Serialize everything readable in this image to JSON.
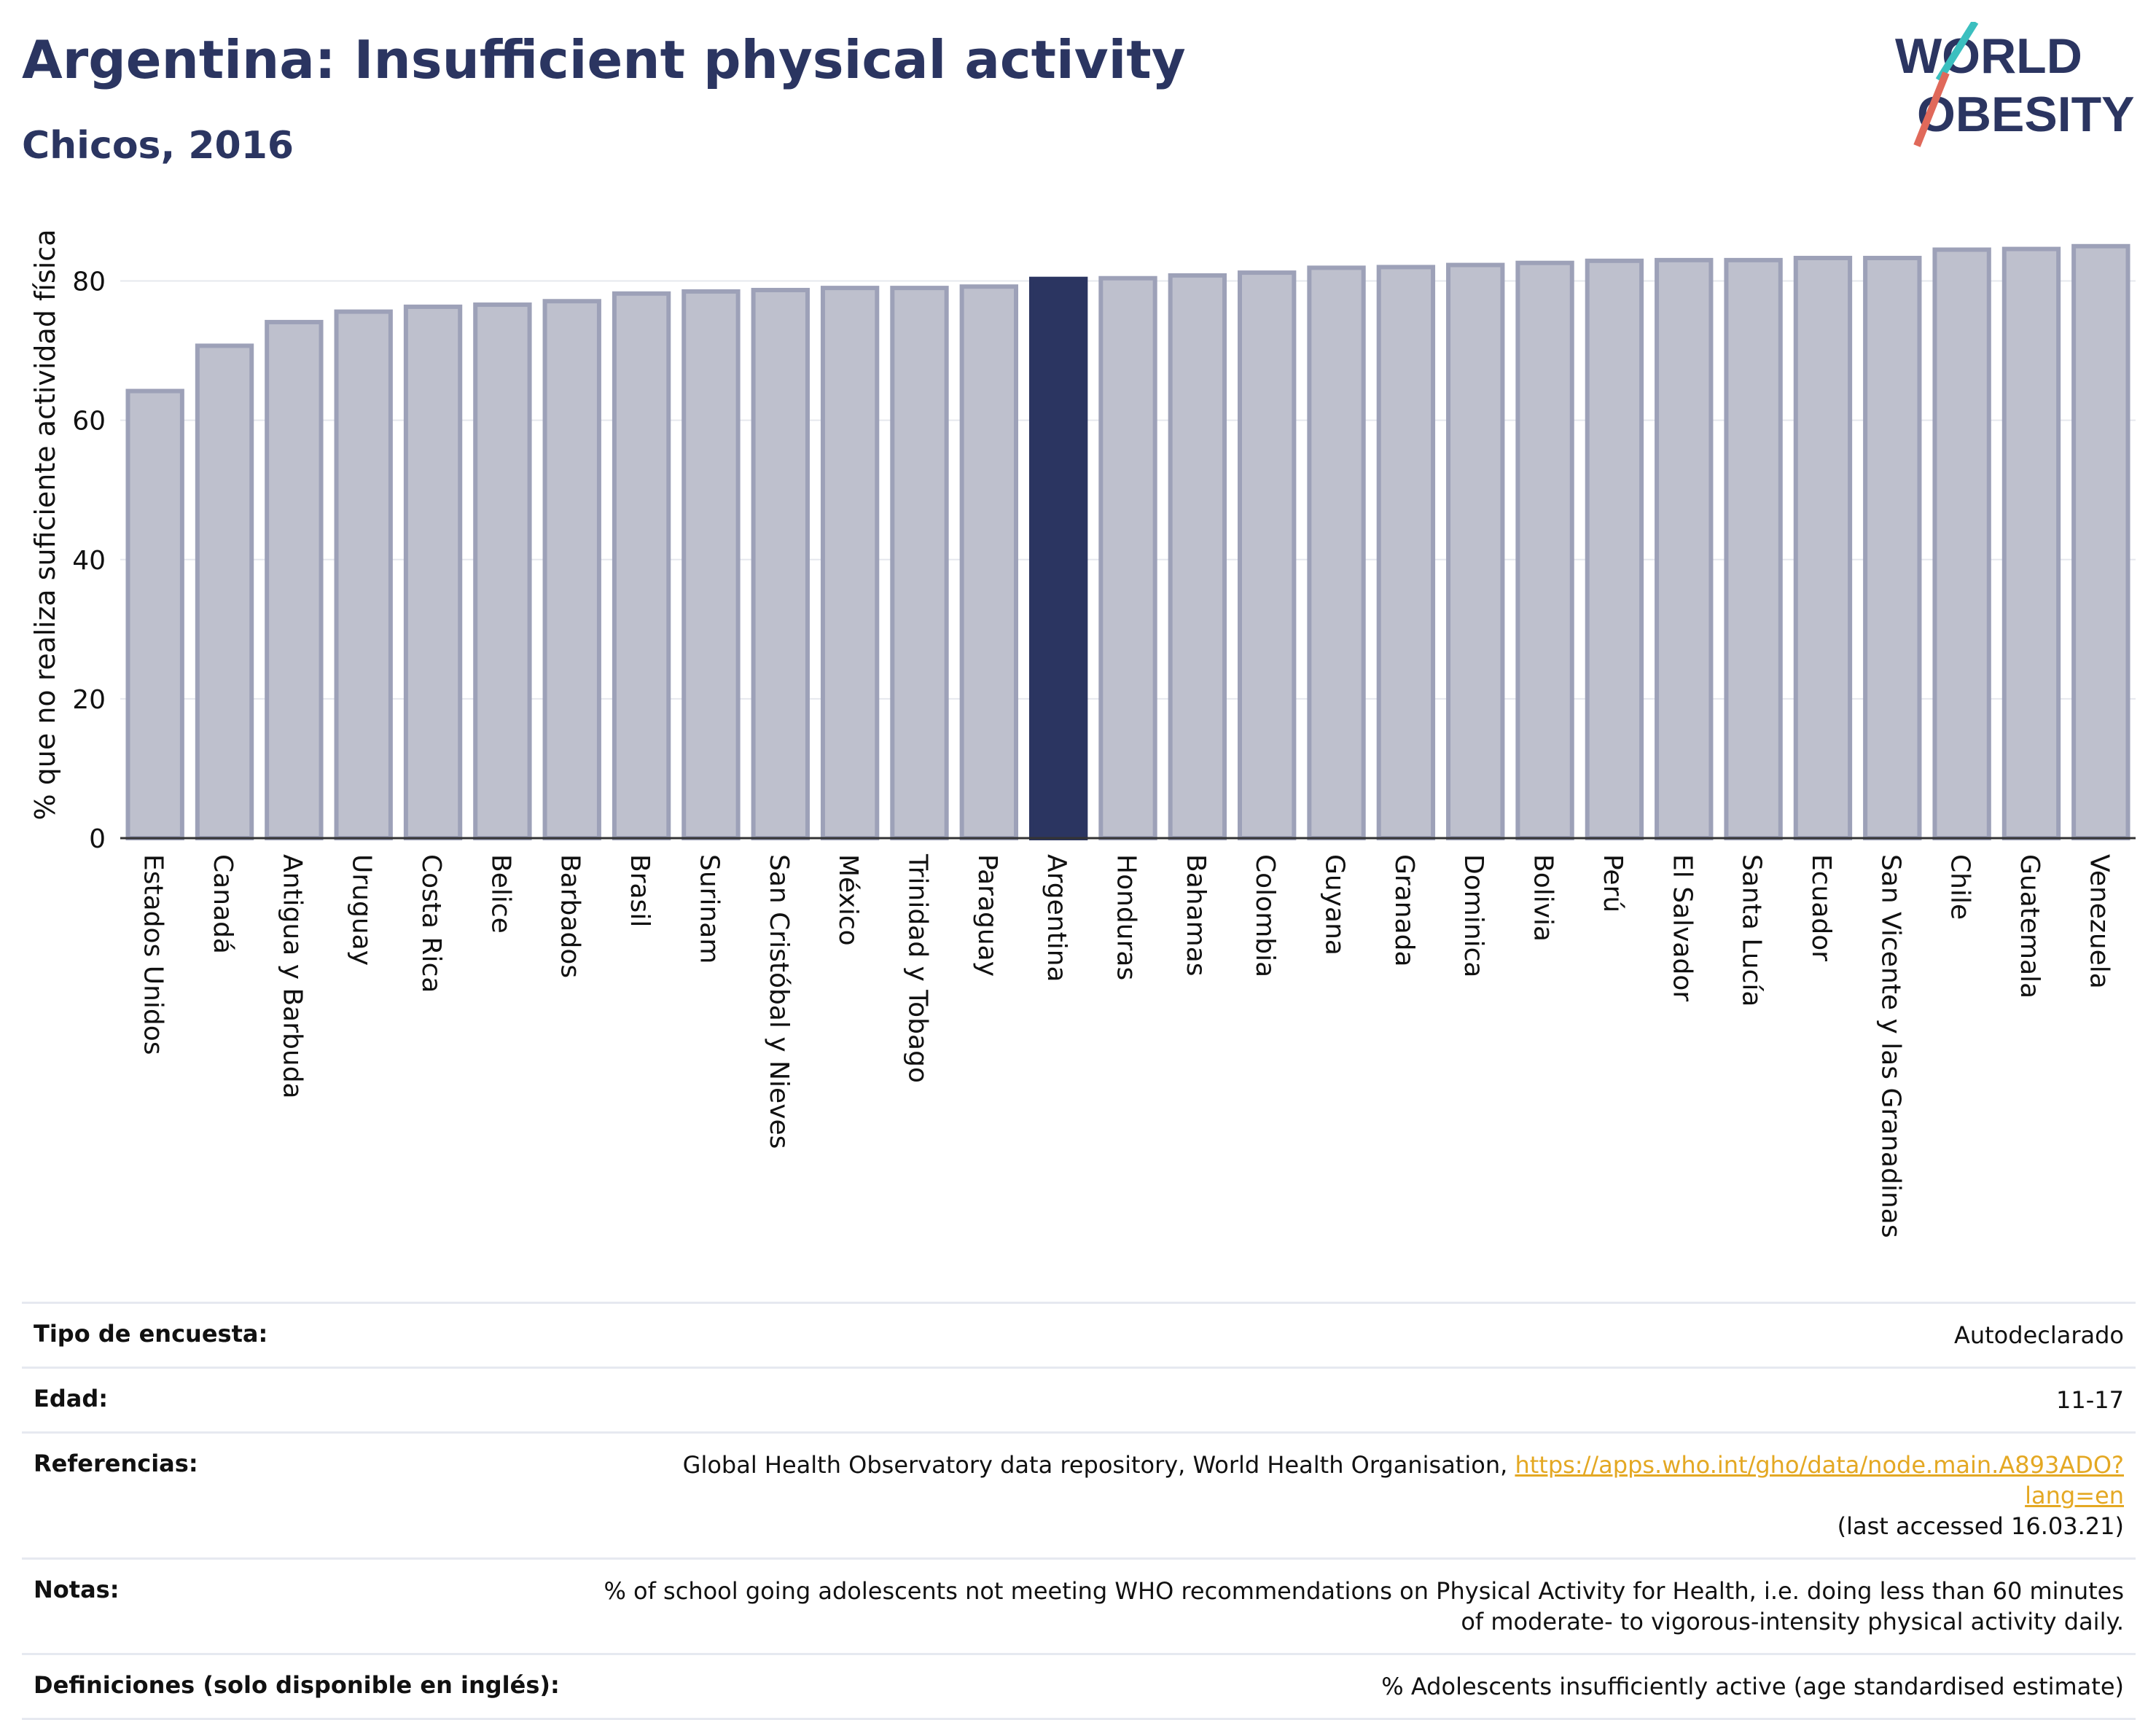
{
  "header": {
    "title": "Argentina: Insufficient physical activity",
    "subtitle": "Chicos, 2016"
  },
  "logo": {
    "line1": "WORLD",
    "line2": "OBESITY",
    "colors": [
      "#2b3561",
      "#e0695a",
      "#3bbfbf"
    ]
  },
  "chart_data": {
    "type": "bar",
    "ylabel": "% que no realiza suficiente actividad física",
    "ylim": [
      0,
      90
    ],
    "yticks": [
      0,
      20,
      40,
      60,
      80
    ],
    "grid": true,
    "highlight": "Argentina",
    "colors": {
      "bar": "#bec0cd",
      "bar_edge": "#9da1b8",
      "highlight": "#2b3561"
    },
    "categories": [
      "Estados Unidos",
      "Canadá",
      "Antigua y Barbuda",
      "Uruguay",
      "Costa Rica",
      "Belice",
      "Barbados",
      "Brasil",
      "Surinam",
      "San Cristóbal y Nieves",
      "México",
      "Trinidad y Tobago",
      "Paraguay",
      "Argentina",
      "Honduras",
      "Bahamas",
      "Colombia",
      "Guyana",
      "Granada",
      "Dominica",
      "Bolivia",
      "Perú",
      "El Salvador",
      "Santa Lucía",
      "Ecuador",
      "San Vicente y las Granadinas",
      "Chile",
      "Guatemala",
      "Venezuela"
    ],
    "values": [
      64.2,
      70.7,
      74.1,
      75.6,
      76.3,
      76.6,
      77.1,
      78.2,
      78.5,
      78.7,
      79.0,
      79.0,
      79.2,
      80.3,
      80.4,
      80.8,
      81.2,
      81.9,
      82.0,
      82.3,
      82.6,
      82.9,
      83.0,
      83.0,
      83.3,
      83.3,
      84.5,
      84.6,
      85.0
    ]
  },
  "info_table": {
    "rows": [
      {
        "label": "Tipo de encuesta:",
        "value": "Autodeclarado"
      },
      {
        "label": "Edad:",
        "value": "11-17"
      },
      {
        "label": "Referencias:",
        "value": "Global Health Observatory data repository, World Health Organisation, ",
        "link": "https://apps.who.int/gho/data/node.main.A893ADO?lang=en",
        "value_after": "(last accessed 16.03.21)"
      },
      {
        "label": "Notas:",
        "value": "% of school going adolescents not meeting WHO recommendations on Physical Activity for Health, i.e. doing less than 60 minutes of moderate- to vigorous-intensity physical activity daily."
      },
      {
        "label": "Definiciones (solo disponible en inglés):",
        "value": "% Adolescents insufficiently active (age standardised estimate)"
      }
    ]
  }
}
